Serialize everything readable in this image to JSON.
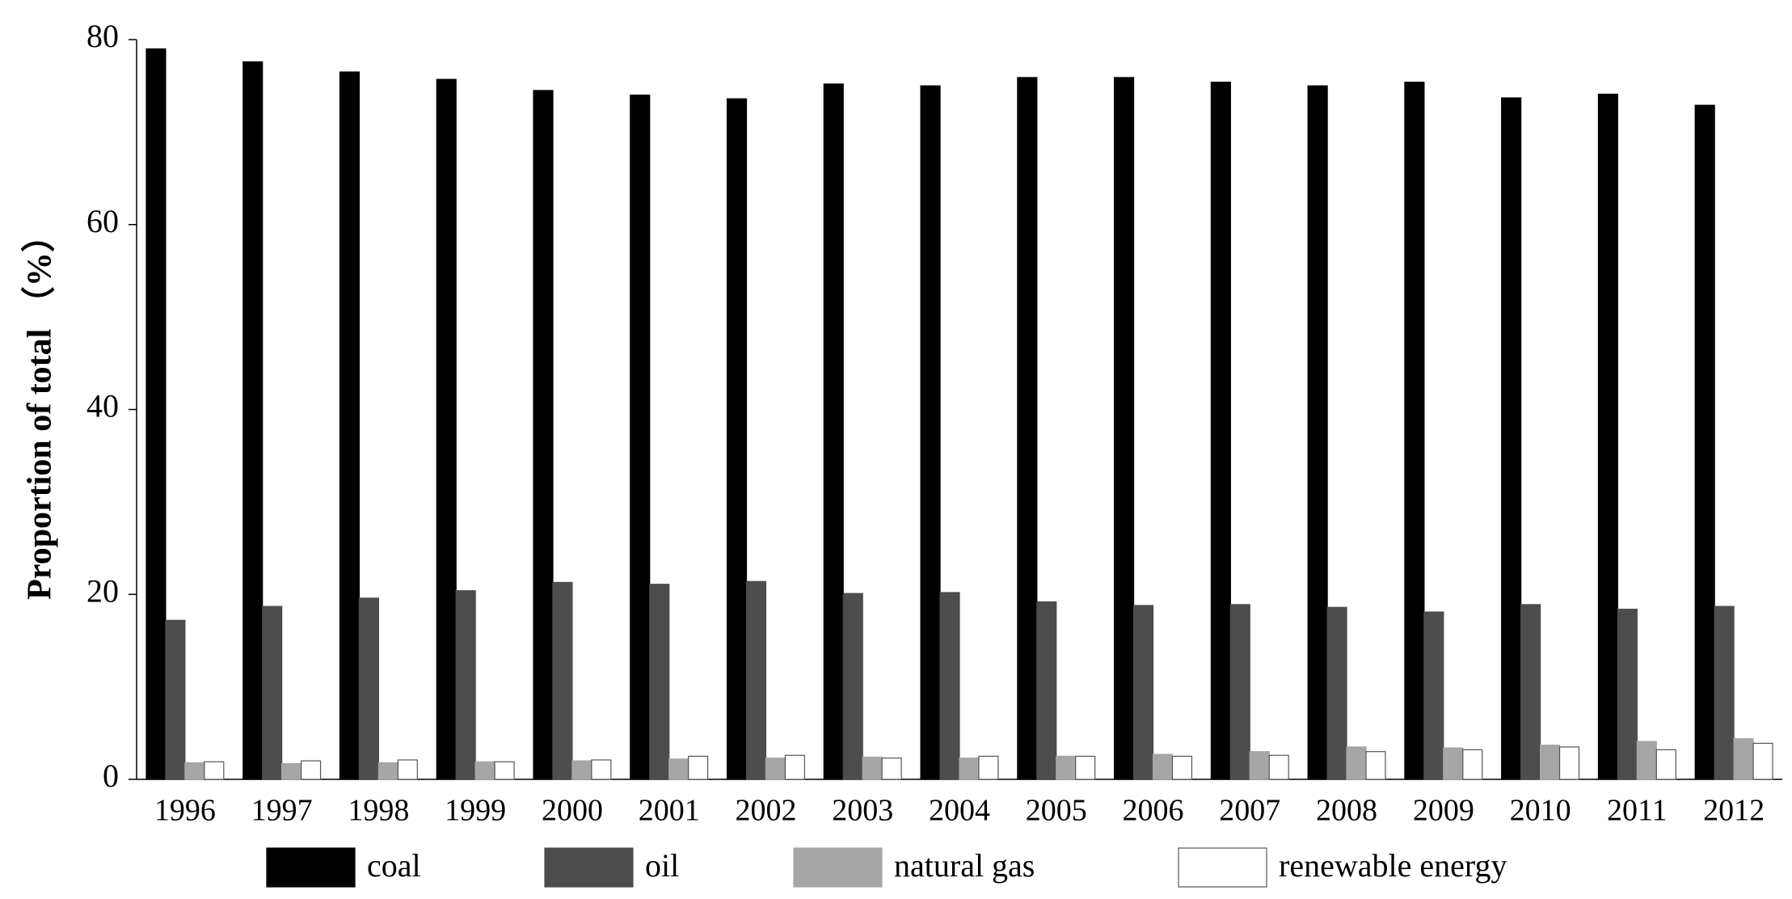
{
  "chart_data": {
    "type": "bar",
    "y_label": "Proportion of total （%）",
    "categories": [
      "1996",
      "1997",
      "1998",
      "1999",
      "2000",
      "2001",
      "2002",
      "2003",
      "2004",
      "2005",
      "2006",
      "2007",
      "2008",
      "2009",
      "2010",
      "2011",
      "2012"
    ],
    "series": [
      {
        "name": "coal",
        "color": "#000000",
        "values": [
          79.0,
          77.6,
          76.5,
          75.7,
          74.5,
          74.0,
          73.6,
          75.2,
          75.0,
          75.9,
          75.9,
          75.4,
          75.0,
          75.4,
          73.7,
          74.1,
          72.9
        ]
      },
      {
        "name": "oil",
        "color": "#4d4d4d",
        "values": [
          17.2,
          18.7,
          19.6,
          20.4,
          21.3,
          21.1,
          21.4,
          20.1,
          20.2,
          19.2,
          18.8,
          18.9,
          18.6,
          18.1,
          18.9,
          18.4,
          18.7
        ]
      },
      {
        "name": "natural gas",
        "color": "#a6a6a6",
        "values": [
          1.8,
          1.7,
          1.8,
          1.9,
          2.0,
          2.2,
          2.3,
          2.4,
          2.3,
          2.5,
          2.7,
          3.0,
          3.5,
          3.4,
          3.7,
          4.1,
          4.4
        ]
      },
      {
        "name": "renewable energy",
        "color": "#ffffff",
        "values": [
          1.9,
          2.0,
          2.1,
          1.9,
          2.1,
          2.5,
          2.6,
          2.3,
          2.5,
          2.5,
          2.5,
          2.6,
          3.0,
          3.2,
          3.5,
          3.2,
          3.9
        ]
      }
    ],
    "ylim": [
      0,
      80
    ],
    "yticks": [
      0,
      20,
      40,
      60,
      80
    ],
    "grid": false,
    "legend": "bottom"
  }
}
